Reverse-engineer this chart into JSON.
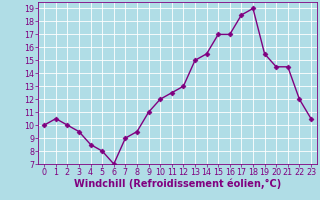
{
  "x": [
    0,
    1,
    2,
    3,
    4,
    5,
    6,
    7,
    8,
    9,
    10,
    11,
    12,
    13,
    14,
    15,
    16,
    17,
    18,
    19,
    20,
    21,
    22,
    23
  ],
  "y": [
    10,
    10.5,
    10,
    9.5,
    8.5,
    8,
    7,
    9,
    9.5,
    11,
    12,
    12.5,
    13,
    15,
    15.5,
    17,
    17,
    18.5,
    19,
    15.5,
    14.5,
    14.5,
    12,
    10.5
  ],
  "line_color": "#800080",
  "marker": "D",
  "marker_size": 2.5,
  "bg_color": "#b0dde6",
  "grid_color": "#ffffff",
  "xlabel": "Windchill (Refroidissement éolien,°C)",
  "xlim": [
    -0.5,
    23.5
  ],
  "ylim": [
    7,
    19.5
  ],
  "yticks": [
    7,
    8,
    9,
    10,
    11,
    12,
    13,
    14,
    15,
    16,
    17,
    18,
    19
  ],
  "xticks": [
    0,
    1,
    2,
    3,
    4,
    5,
    6,
    7,
    8,
    9,
    10,
    11,
    12,
    13,
    14,
    15,
    16,
    17,
    18,
    19,
    20,
    21,
    22,
    23
  ],
  "tick_label_fontsize": 5.8,
  "xlabel_fontsize": 7.0,
  "line_width": 1.0,
  "spine_color": "#800080"
}
